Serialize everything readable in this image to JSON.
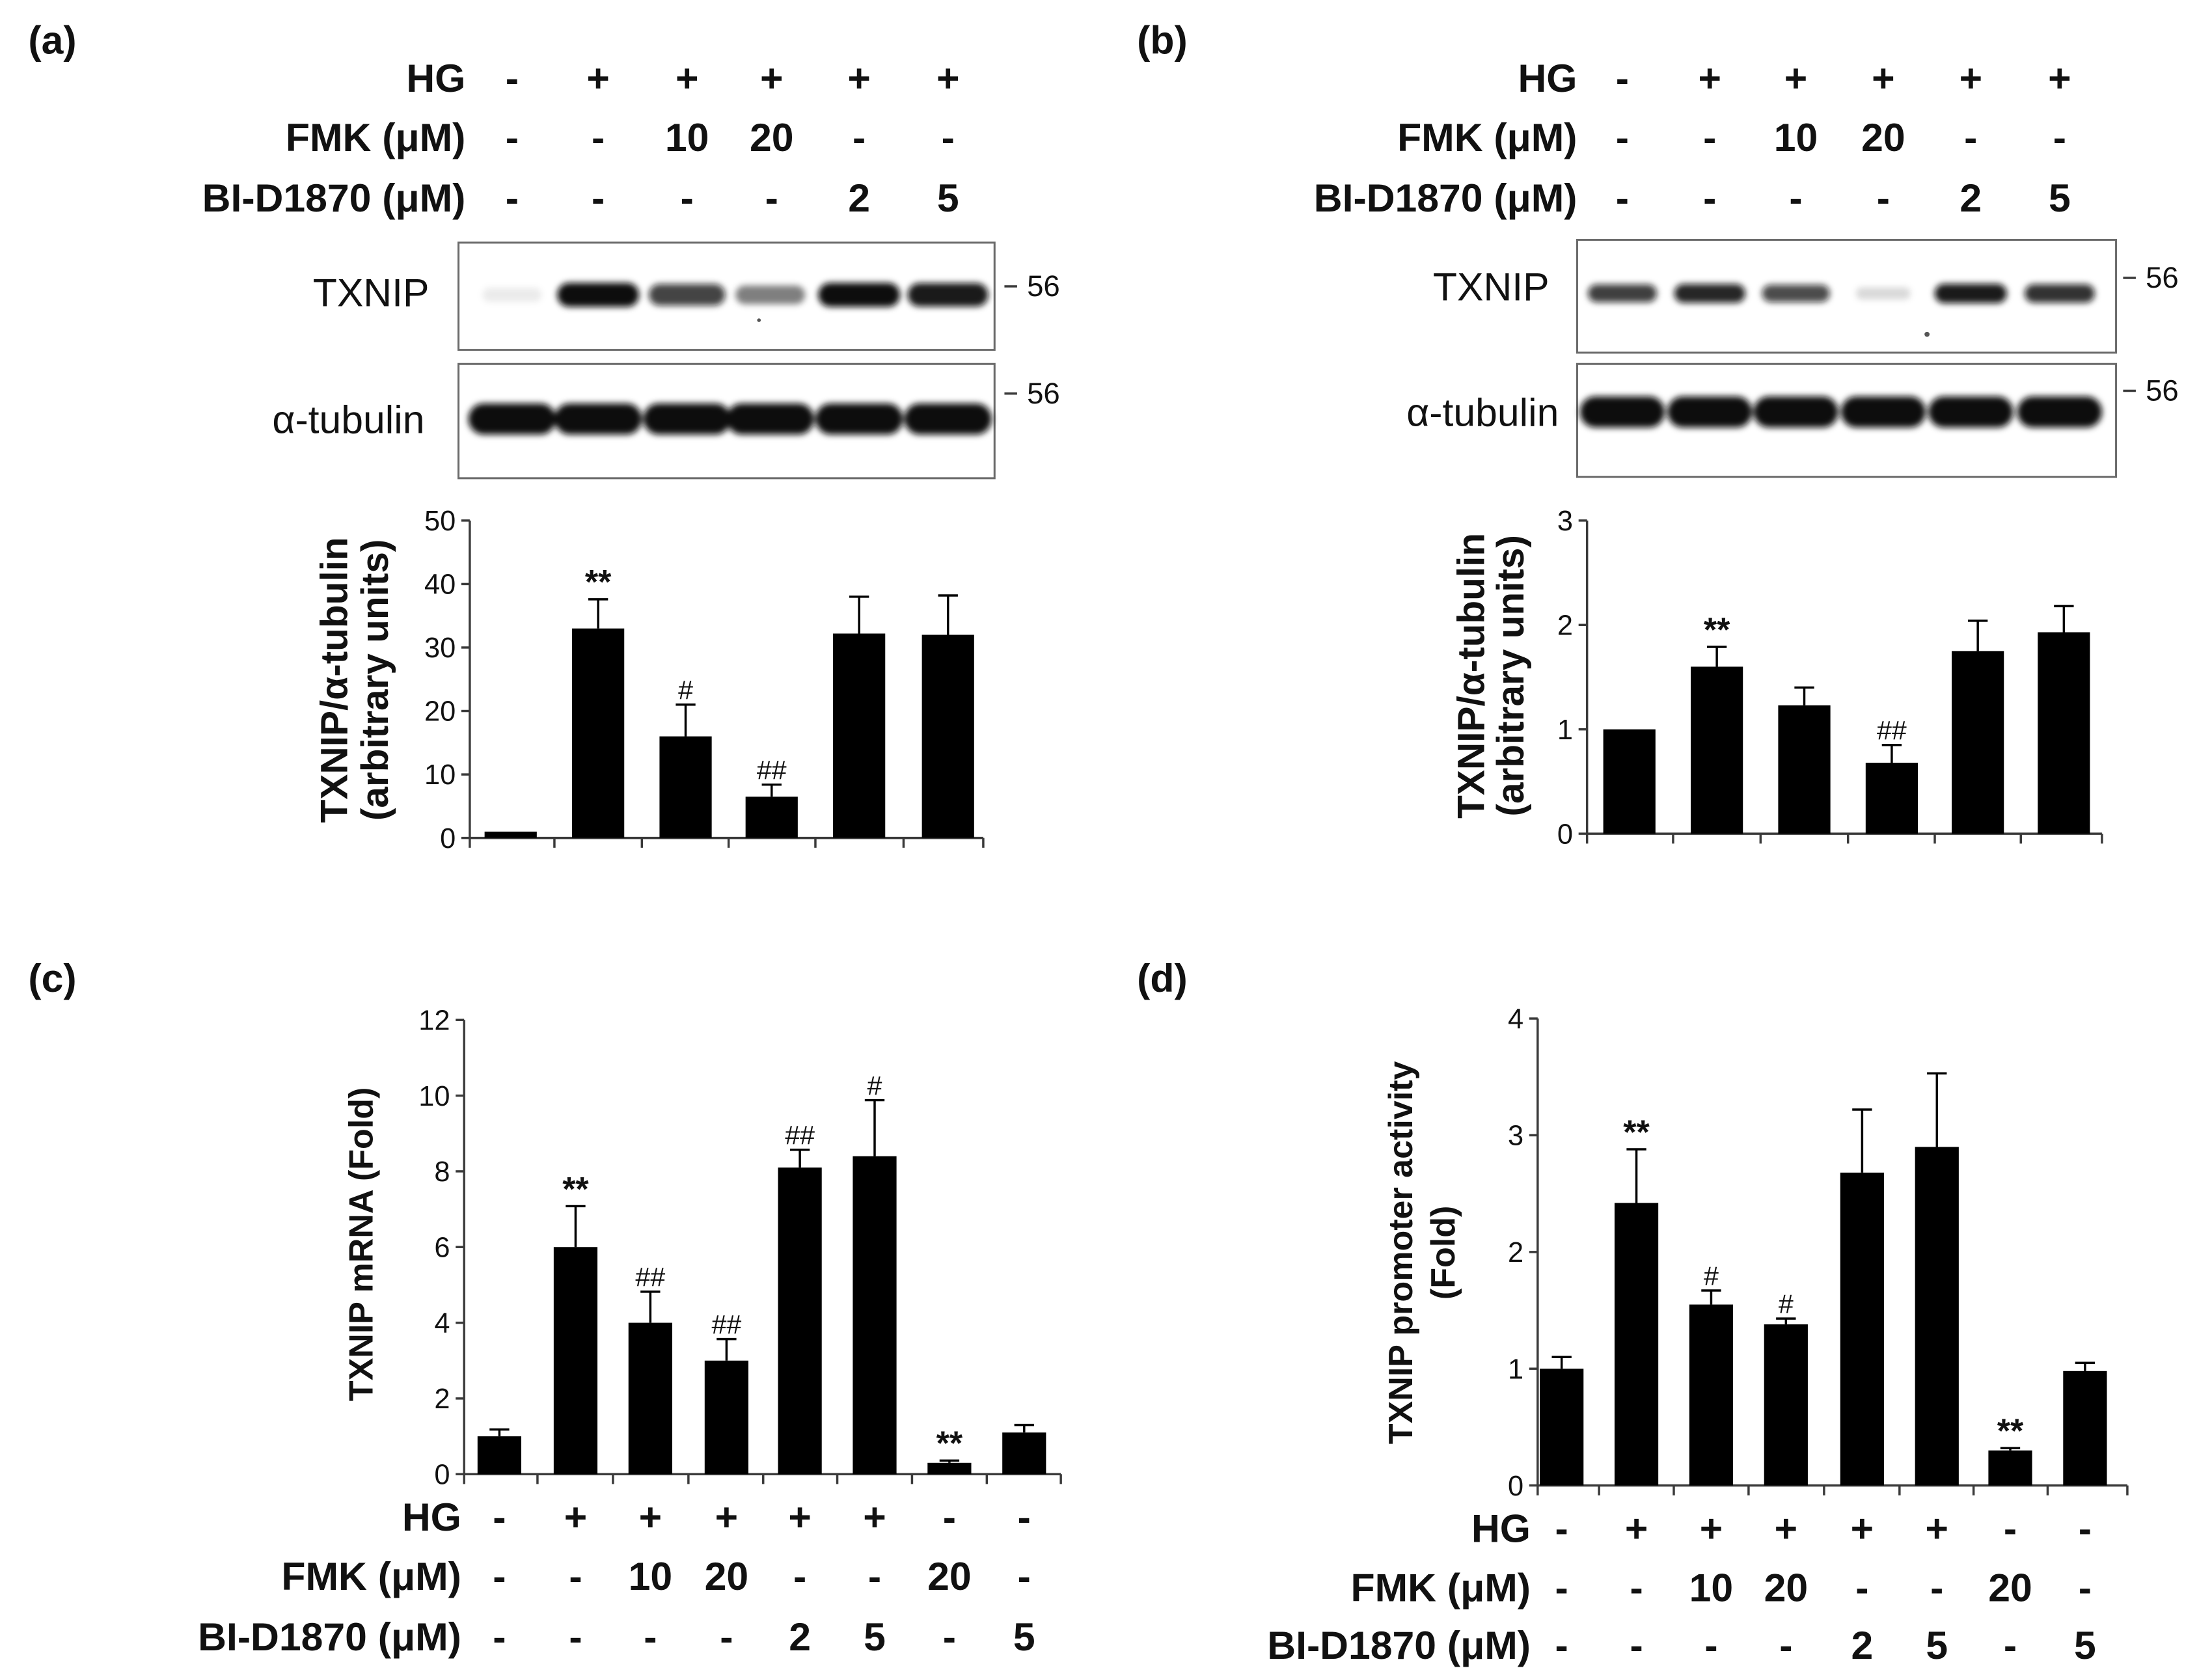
{
  "panel_a": {
    "label": "(a)",
    "treatments": [
      {
        "label": "HG",
        "values": [
          "-",
          "+",
          "+",
          "+",
          "+",
          "+"
        ]
      },
      {
        "label": "FMK (μM)",
        "values": [
          "-",
          "-",
          "10",
          "20",
          "-",
          "-"
        ]
      },
      {
        "label": "BI-D1870 (μM)",
        "values": [
          "-",
          "-",
          "-",
          "-",
          "2",
          "5"
        ]
      }
    ],
    "blots": [
      {
        "name": "TXNIP",
        "marker_kda": "56",
        "band_intensity": [
          0.08,
          1.0,
          0.78,
          0.5,
          1.0,
          0.95
        ]
      },
      {
        "name": "α-tubulin",
        "marker_kda": "56",
        "band_intensity": [
          1.0,
          1.0,
          1.0,
          1.0,
          1.0,
          1.0
        ]
      }
    ]
  },
  "panel_b": {
    "label": "(b)",
    "treatments": [
      {
        "label": "HG",
        "values": [
          "-",
          "+",
          "+",
          "+",
          "+",
          "+"
        ]
      },
      {
        "label": "FMK (μM)",
        "values": [
          "-",
          "-",
          "10",
          "20",
          "-",
          "-"
        ]
      },
      {
        "label": "BI-D1870 (μM)",
        "values": [
          "-",
          "-",
          "-",
          "-",
          "2",
          "5"
        ]
      }
    ],
    "blots": [
      {
        "name": "TXNIP",
        "marker_kda": "56",
        "band_intensity": [
          0.8,
          0.9,
          0.75,
          0.15,
          0.95,
          0.85
        ]
      },
      {
        "name": "α-tubulin",
        "marker_kda": "56",
        "band_intensity": [
          1.0,
          1.0,
          1.0,
          1.0,
          1.0,
          1.0
        ]
      }
    ]
  },
  "panel_c": {
    "label": "(c)",
    "treatments": [
      {
        "label": "HG",
        "values": [
          "-",
          "+",
          "+",
          "+",
          "+",
          "+",
          "-",
          "-"
        ]
      },
      {
        "label": "FMK (μM)",
        "values": [
          "-",
          "-",
          "10",
          "20",
          "-",
          "-",
          "20",
          "-"
        ]
      },
      {
        "label": "BI-D1870 (μM)",
        "values": [
          "-",
          "-",
          "-",
          "-",
          "2",
          "5",
          "-",
          "5"
        ]
      }
    ]
  },
  "panel_d": {
    "label": "(d)",
    "treatments": [
      {
        "label": "HG",
        "values": [
          "-",
          "+",
          "+",
          "+",
          "+",
          "+",
          "-",
          "-"
        ]
      },
      {
        "label": "FMK (μM)",
        "values": [
          "-",
          "-",
          "10",
          "20",
          "-",
          "-",
          "20",
          "-"
        ]
      },
      {
        "label": "BI-D1870 (μM)",
        "values": [
          "-",
          "-",
          "-",
          "-",
          "2",
          "5",
          "-",
          "5"
        ]
      }
    ]
  },
  "chart_data": [
    {
      "type": "bar",
      "title": "",
      "xlabel": "",
      "ylabel": [
        "TXNIP/α-tubulin",
        "(arbitrary units)"
      ],
      "ylim": [
        0,
        50
      ],
      "yticks": [
        0,
        10,
        20,
        30,
        40,
        50
      ],
      "values": [
        1,
        33,
        16,
        6.5,
        32.2,
        32
      ],
      "errors": [
        0,
        4.6,
        5,
        1.9,
        5.8,
        6.2
      ],
      "annotations": [
        "",
        "**",
        "#",
        "##",
        "",
        ""
      ],
      "grid": false
    },
    {
      "type": "bar",
      "title": "",
      "xlabel": "",
      "ylabel": [
        "TXNIP/α-tubulin",
        "(arbitrary units)"
      ],
      "ylim": [
        0,
        3
      ],
      "yticks": [
        0,
        1,
        2,
        3
      ],
      "values": [
        1.0,
        1.6,
        1.23,
        0.68,
        1.75,
        1.93
      ],
      "errors": [
        0,
        0.19,
        0.17,
        0.17,
        0.29,
        0.25
      ],
      "annotations": [
        "",
        "**",
        "",
        "##",
        "",
        ""
      ],
      "grid": false
    },
    {
      "type": "bar",
      "title": "",
      "xlabel": "",
      "ylabel": [
        "TXNIP mRNA (Fold)"
      ],
      "ylim": [
        0,
        12
      ],
      "yticks": [
        0,
        2,
        4,
        6,
        8,
        10,
        12
      ],
      "values": [
        1.0,
        6.0,
        4.0,
        3.0,
        8.1,
        8.4,
        0.3,
        1.1
      ],
      "errors": [
        0.18,
        1.08,
        0.82,
        0.57,
        0.47,
        1.48,
        0.06,
        0.2
      ],
      "annotations": [
        "",
        "**",
        "##",
        "##",
        "##",
        "#",
        "**",
        ""
      ],
      "grid": false
    },
    {
      "type": "bar",
      "title": "",
      "xlabel": "",
      "ylabel": [
        "TXNIP promoter activity",
        "(Fold)"
      ],
      "ylim": [
        0,
        4
      ],
      "yticks": [
        0,
        1,
        2,
        3,
        4
      ],
      "values": [
        1.0,
        2.42,
        1.55,
        1.38,
        2.68,
        2.9,
        0.3,
        0.98
      ],
      "errors": [
        0.1,
        0.46,
        0.12,
        0.05,
        0.54,
        0.63,
        0.02,
        0.07
      ],
      "annotations": [
        "",
        "**",
        "#",
        "#",
        "",
        "",
        "**",
        ""
      ],
      "grid": false
    }
  ]
}
